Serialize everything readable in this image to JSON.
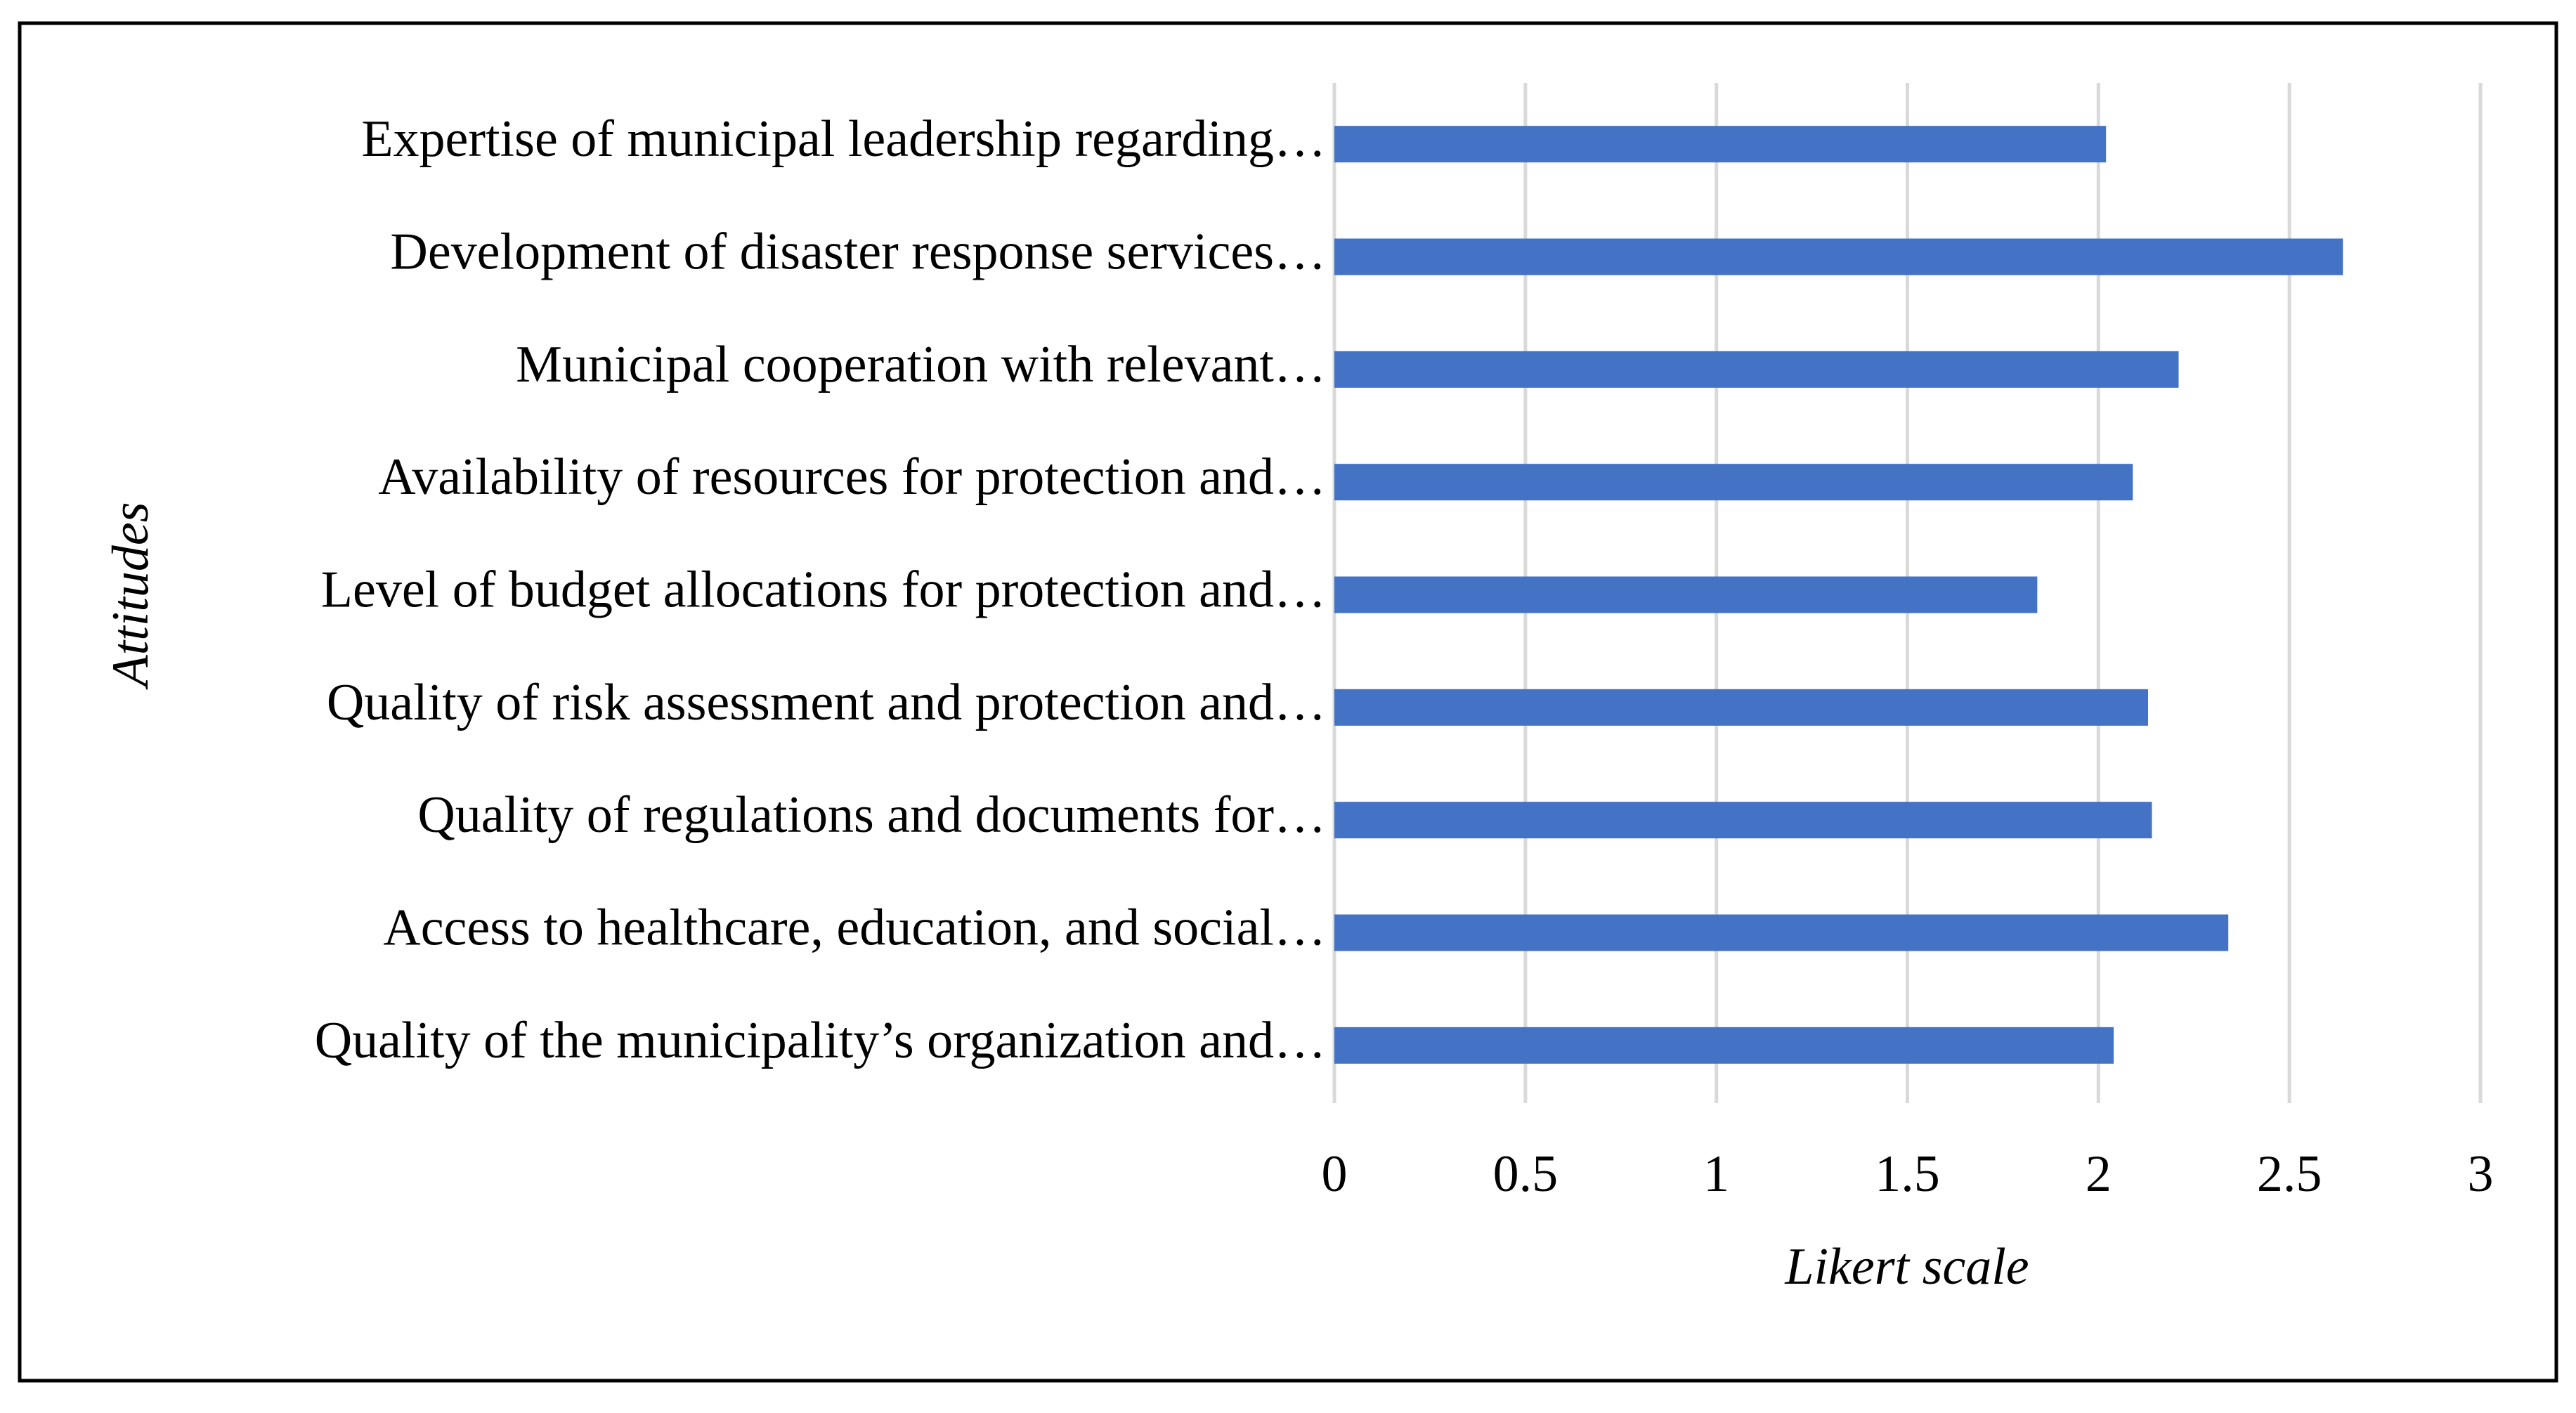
{
  "chart_data": {
    "type": "bar",
    "orientation": "horizontal",
    "x_axis_label": "Likert scale",
    "y_axis_label": "Attitudes",
    "categories": [
      "Expertise of municipal leadership regarding…",
      "Development of disaster response services…",
      "Municipal cooperation with relevant…",
      "Availability of resources for protection and…",
      "Level of budget allocations for protection and…",
      "Quality of risk assessment and protection and…",
      "Quality of regulations and documents for…",
      "Access to healthcare, education, and social…",
      "Quality of the municipality’s organization and…"
    ],
    "values": [
      2.02,
      2.64,
      2.21,
      2.09,
      1.84,
      2.13,
      2.14,
      2.34,
      2.04
    ],
    "color": "#4472c4",
    "xlim": [
      0,
      3
    ],
    "xticks": [
      0,
      0.5,
      1,
      1.5,
      2,
      2.5,
      3
    ],
    "grid": true
  }
}
